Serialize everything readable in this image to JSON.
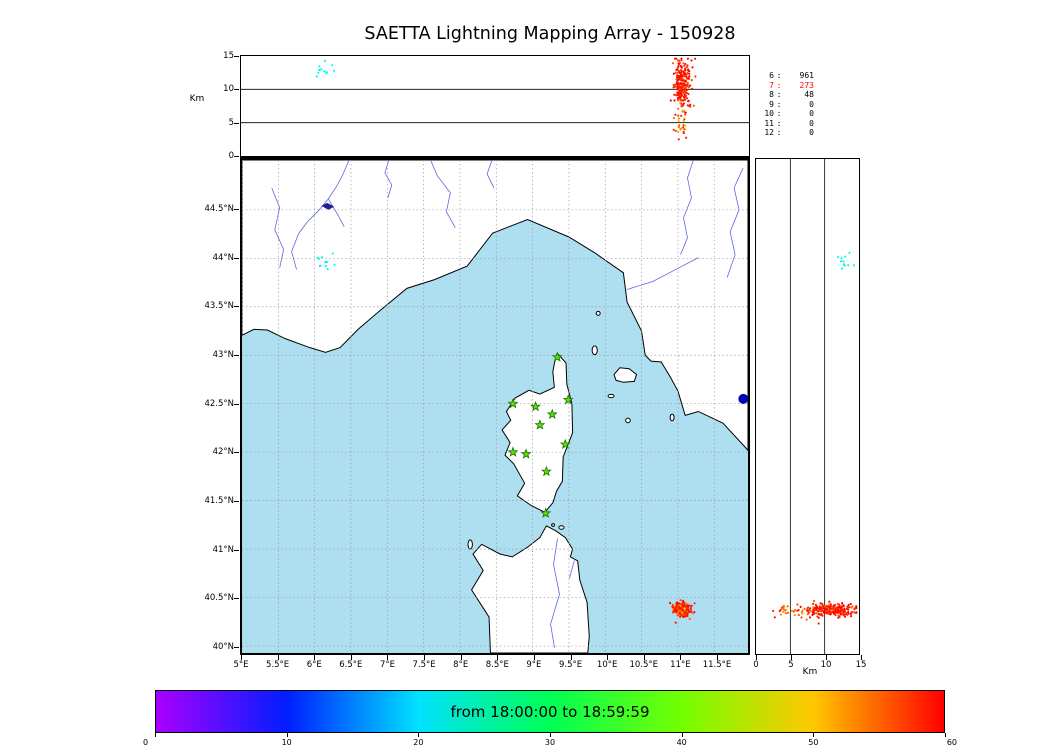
{
  "title": "SAETTA Lightning Mapping Array - 150928",
  "colors": {
    "sea": "#aedff0",
    "land": "#ffffff",
    "coast": "#000000",
    "river": "#5b67e0",
    "lake": "#202090",
    "grid": "#999999",
    "ref_line": "#000000",
    "station_fill": "#55e600",
    "station_stroke": "#1a6e00",
    "stats_highlight": "#ff0000",
    "blue_marker": "#0000bb"
  },
  "axes": {
    "alt_axis_label": "Km",
    "right_axis_label": "Km",
    "alt_ticks": [
      [
        "0",
        0
      ],
      [
        "5",
        5
      ],
      [
        "10",
        10
      ],
      [
        "15",
        15
      ]
    ],
    "lat_ticks": [
      [
        "44.5°N",
        44.5
      ],
      [
        "44°N",
        44
      ],
      [
        "43.5°N",
        43.5
      ],
      [
        "43°N",
        43
      ],
      [
        "42.5°N",
        42.5
      ],
      [
        "42°N",
        42
      ],
      [
        "41.5°N",
        41.5
      ],
      [
        "41°N",
        41
      ],
      [
        "40.5°N",
        40.5
      ],
      [
        "40°N",
        40
      ]
    ],
    "lon_ticks": [
      [
        "5°E",
        5
      ],
      [
        "5.5°E",
        5.5
      ],
      [
        "6°E",
        6
      ],
      [
        "6.5°E",
        6.5
      ],
      [
        "7°E",
        7
      ],
      [
        "7.5°E",
        7.5
      ],
      [
        "8°E",
        8
      ],
      [
        "8.5°E",
        8.5
      ],
      [
        "9°E",
        9
      ],
      [
        "9.5°E",
        9.5
      ],
      [
        "10°E",
        10
      ],
      [
        "10.5°E",
        10.5
      ],
      [
        "11°E",
        11
      ],
      [
        "11.5°E",
        11.5
      ]
    ]
  },
  "colorbar": {
    "label": "from 18:00:00 to 18:59:59",
    "ticks": [
      "0",
      "10",
      "20",
      "30",
      "40",
      "50",
      "60"
    ],
    "range": [
      0,
      60
    ],
    "stops": [
      "hsl(280,100%,50%)",
      "hsl(233,100%,50%)",
      "hsl(187,100%,50%)",
      "hsl(140,100%,50%)",
      "hsl(93,100%,50%)",
      "hsl(47,100%,50%)",
      "hsl(0,100%,50%)"
    ]
  },
  "chart_data": {
    "type": "scatter",
    "title": "SAETTA Lightning Mapping Array - 150928",
    "panels": [
      {
        "id": "alt-vs-lon",
        "x": "longitude_deg_E",
        "y": "altitude_km",
        "xlim": [
          5.0,
          11.96
        ],
        "ylim": [
          0,
          15
        ],
        "ref_lines_km": [
          5,
          10
        ]
      },
      {
        "id": "map",
        "x": "longitude_deg_E",
        "y": "latitude_deg_N",
        "xlim": [
          5.0,
          11.96
        ],
        "ylim": [
          39.93,
          45.01
        ],
        "grid": "dashed 0.5 deg"
      },
      {
        "id": "alt-vs-lat",
        "x": "altitude_km",
        "y": "latitude_deg_N",
        "xlim": [
          0,
          15
        ],
        "ylim": [
          39.93,
          45.01
        ],
        "ref_lines_km": [
          5,
          10
        ]
      }
    ],
    "time_window": {
      "start": "18:00:00",
      "end": "18:59:59",
      "color_scale_minutes": [
        0,
        60
      ]
    },
    "station_count_histogram": {
      "levels": [
        "6",
        "7",
        "8",
        "9",
        "10",
        "11",
        "12"
      ],
      "counts": [
        "961",
        "273",
        "48",
        "0",
        "0",
        "0",
        "0"
      ],
      "highlighted_level": "7"
    },
    "stations": [
      {
        "lon": 9.34,
        "lat": 42.98
      },
      {
        "lon": 8.73,
        "lat": 42.5
      },
      {
        "lon": 9.04,
        "lat": 42.47
      },
      {
        "lon": 9.49,
        "lat": 42.54
      },
      {
        "lon": 9.27,
        "lat": 42.39
      },
      {
        "lon": 9.1,
        "lat": 42.28
      },
      {
        "lon": 9.45,
        "lat": 42.08
      },
      {
        "lon": 8.73,
        "lat": 42.0
      },
      {
        "lon": 8.91,
        "lat": 41.98
      },
      {
        "lon": 9.19,
        "lat": 41.8
      },
      {
        "lon": 9.18,
        "lat": 41.37
      }
    ],
    "clusters": [
      {
        "name": "storm-cell-main",
        "count": 240,
        "lon_mean": 11.05,
        "lon_sd": 0.055,
        "lat_mean": 40.38,
        "lat_sd": 0.033,
        "alt_mean": 11.0,
        "alt_sd": 1.9,
        "alt_min": 6.0,
        "alt_max": 14.6,
        "t_mean": 58.5,
        "t_sd": 2.2,
        "t_min": 50,
        "t_max": 60
      },
      {
        "name": "storm-cell-low",
        "count": 30,
        "lon_mean": 11.02,
        "lon_sd": 0.05,
        "lat_mean": 40.37,
        "lat_sd": 0.03,
        "alt_mean": 5.0,
        "alt_sd": 1.6,
        "alt_min": 2.5,
        "alt_max": 8.0,
        "t_mean": 55.0,
        "t_sd": 3.0,
        "t_min": 48,
        "t_max": 60
      },
      {
        "name": "weak-cell-northwest",
        "count": 11,
        "lon_mean": 6.12,
        "lon_sd": 0.07,
        "lat_mean": 43.96,
        "lat_sd": 0.05,
        "alt_mean": 12.6,
        "alt_sd": 0.9,
        "alt_min": 10.5,
        "alt_max": 14.3,
        "t_mean": 22.0,
        "t_sd": 1.2,
        "t_min": 20,
        "t_max": 24.5
      }
    ],
    "markers": [
      {
        "name": "blue-marker",
        "lon": 11.9,
        "lat": 42.55,
        "radius": 5,
        "color": "#0000bb"
      }
    ]
  }
}
